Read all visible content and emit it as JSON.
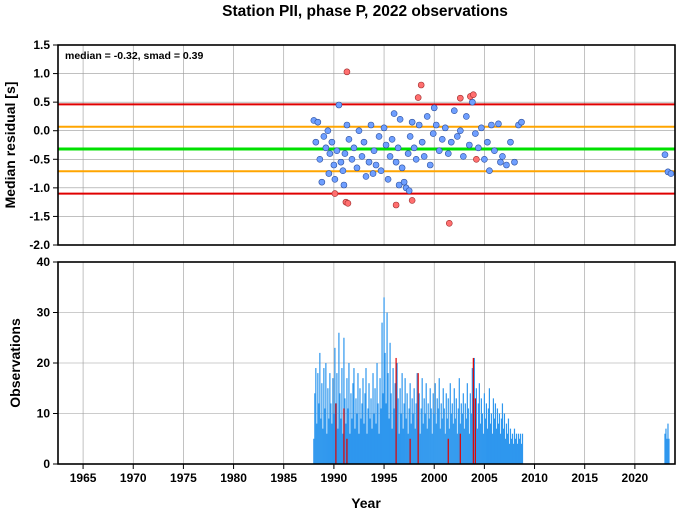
{
  "title": "Station PII, phase P, 2022 observations",
  "colors": {
    "median_line": "#00e000",
    "smad_line": "#ffa500",
    "outer_line": "#e00000",
    "normal_point": "#6f9fff",
    "outlier_point": "#ff6f6f",
    "normal_bar": "#2e97ee",
    "outlier_bar": "#e00000",
    "grid": "#9a9a9a"
  },
  "chart_data": [
    {
      "type": "scatter",
      "annotation": "median = -0.32, smad = 0.39",
      "xlabel": "",
      "ylabel": "Median residual [s]",
      "xlim": [
        1962.5,
        2024
      ],
      "ylim": [
        -2.0,
        1.5
      ],
      "y_ticks": [
        "1.5",
        "1.0",
        "0.5",
        "0.0",
        "-0.5",
        "-1.0",
        "-1.5",
        "-2.0"
      ],
      "grid": true,
      "hlines": [
        {
          "y": 0.46,
          "role": "upper-outer"
        },
        {
          "y": 0.07,
          "role": "upper-smad"
        },
        {
          "y": -0.32,
          "role": "median"
        },
        {
          "y": -0.71,
          "role": "lower-smad"
        },
        {
          "y": -1.1,
          "role": "lower-outer"
        }
      ],
      "points": [
        [
          1988.0,
          0.18
        ],
        [
          1988.2,
          -0.2
        ],
        [
          1988.4,
          0.15
        ],
        [
          1988.6,
          -0.5
        ],
        [
          1988.8,
          -0.9
        ],
        [
          1989.0,
          -0.1
        ],
        [
          1989.2,
          -0.3
        ],
        [
          1989.4,
          0.0
        ],
        [
          1989.6,
          -0.4
        ],
        [
          1989.8,
          -0.2
        ],
        [
          1990.0,
          -0.6
        ],
        [
          1990.1,
          -0.85
        ],
        [
          1990.3,
          -0.35
        ],
        [
          1990.5,
          0.45
        ],
        [
          1990.7,
          -0.55
        ],
        [
          1990.9,
          -0.7
        ],
        [
          1991.1,
          -0.4
        ],
        [
          1991.3,
          0.1
        ],
        [
          1991.5,
          -0.15
        ],
        [
          1991.8,
          -0.5
        ],
        [
          1992.0,
          -0.3
        ],
        [
          1992.3,
          -0.65
        ],
        [
          1992.5,
          0.0
        ],
        [
          1992.8,
          -0.45
        ],
        [
          1993.0,
          -0.2
        ],
        [
          1993.2,
          -0.8
        ],
        [
          1993.5,
          -0.55
        ],
        [
          1993.7,
          0.1
        ],
        [
          1994.0,
          -0.35
        ],
        [
          1994.2,
          -0.6
        ],
        [
          1994.5,
          -0.1
        ],
        [
          1994.7,
          -0.7
        ],
        [
          1995.0,
          0.05
        ],
        [
          1995.2,
          -0.25
        ],
        [
          1995.4,
          -0.85
        ],
        [
          1995.6,
          -0.45
        ],
        [
          1995.8,
          -0.15
        ],
        [
          1996.0,
          0.3
        ],
        [
          1996.2,
          -0.55
        ],
        [
          1996.4,
          -0.3
        ],
        [
          1996.6,
          0.2
        ],
        [
          1996.8,
          -0.65
        ],
        [
          1997.0,
          -0.9
        ],
        [
          1997.2,
          -1.0
        ],
        [
          1997.4,
          -0.4
        ],
        [
          1997.6,
          -0.1
        ],
        [
          1997.8,
          0.15
        ],
        [
          1998.0,
          -0.3
        ],
        [
          1998.2,
          -0.5
        ],
        [
          1998.5,
          0.1
        ],
        [
          1998.8,
          -0.2
        ],
        [
          1999.0,
          -0.45
        ],
        [
          1999.3,
          0.25
        ],
        [
          1999.6,
          -0.6
        ],
        [
          1999.9,
          -0.05
        ],
        [
          2000.2,
          0.1
        ],
        [
          2000.5,
          -0.35
        ],
        [
          2000.8,
          -0.15
        ],
        [
          2001.1,
          0.05
        ],
        [
          2001.4,
          -0.4
        ],
        [
          2001.7,
          -0.2
        ],
        [
          2002.0,
          0.35
        ],
        [
          2002.3,
          -0.1
        ],
        [
          2002.6,
          0.0
        ],
        [
          2002.9,
          -0.45
        ],
        [
          2003.2,
          0.25
        ],
        [
          2003.5,
          -0.25
        ],
        [
          2003.8,
          0.5
        ],
        [
          2004.1,
          -0.05
        ],
        [
          2004.4,
          -0.3
        ],
        [
          2004.7,
          0.05
        ],
        [
          2005.0,
          -0.5
        ],
        [
          2005.3,
          -0.2
        ],
        [
          2005.7,
          0.1
        ],
        [
          2006.0,
          -0.35
        ],
        [
          2006.4,
          0.12
        ],
        [
          2006.8,
          -0.45
        ],
        [
          2007.2,
          -0.6
        ],
        [
          2007.6,
          -0.2
        ],
        [
          2008.0,
          -0.55
        ],
        [
          2008.4,
          0.1
        ],
        [
          2008.7,
          0.15
        ],
        [
          1989.5,
          -0.75
        ],
        [
          1991.0,
          -0.95
        ],
        [
          1993.9,
          -0.75
        ],
        [
          1996.5,
          -0.95
        ],
        [
          1997.5,
          -1.05
        ],
        [
          2000.0,
          0.4
        ],
        [
          2005.5,
          -0.7
        ],
        [
          2006.6,
          -0.55
        ],
        [
          2023.0,
          -0.42
        ],
        [
          2023.3,
          -0.72
        ],
        [
          2023.6,
          -0.75
        ]
      ],
      "outliers": [
        [
          1990.1,
          -1.1
        ],
        [
          1991.2,
          -1.25
        ],
        [
          1991.4,
          -1.27
        ],
        [
          1991.3,
          1.03
        ],
        [
          1996.2,
          -1.3
        ],
        [
          1997.8,
          -1.22
        ],
        [
          1998.4,
          0.58
        ],
        [
          1998.7,
          0.8
        ],
        [
          2001.5,
          -1.62
        ],
        [
          2002.6,
          0.57
        ],
        [
          2003.6,
          0.6
        ],
        [
          2003.9,
          0.63
        ],
        [
          2004.2,
          -0.5
        ]
      ]
    },
    {
      "type": "bar",
      "xlabel": "Year",
      "ylabel": "Observations",
      "xlim": [
        1962.5,
        2024
      ],
      "ylim": [
        0,
        40
      ],
      "y_ticks": [
        "40",
        "30",
        "20",
        "10",
        "0"
      ],
      "x_ticks": [
        "1965",
        "1970",
        "1975",
        "1980",
        "1985",
        "1990",
        "1995",
        "2000",
        "2005",
        "2010",
        "2015",
        "2020"
      ],
      "grid": true,
      "bars": [
        [
          1988.0,
          5
        ],
        [
          1988.1,
          14
        ],
        [
          1988.2,
          19
        ],
        [
          1988.3,
          8
        ],
        [
          1988.4,
          18
        ],
        [
          1988.5,
          12
        ],
        [
          1988.6,
          22
        ],
        [
          1988.7,
          9
        ],
        [
          1988.8,
          16
        ],
        [
          1988.9,
          7
        ],
        [
          1989.0,
          19
        ],
        [
          1989.1,
          11
        ],
        [
          1989.2,
          20
        ],
        [
          1989.3,
          6
        ],
        [
          1989.4,
          15
        ],
        [
          1989.5,
          9
        ],
        [
          1989.6,
          18
        ],
        [
          1989.7,
          12
        ],
        [
          1989.8,
          8
        ],
        [
          1989.9,
          17
        ],
        [
          1990.0,
          10
        ],
        [
          1990.1,
          23
        ],
        [
          1990.2,
          12
        ],
        [
          1990.3,
          18
        ],
        [
          1990.4,
          7
        ],
        [
          1990.5,
          26
        ],
        [
          1990.6,
          14
        ],
        [
          1990.7,
          9
        ],
        [
          1990.8,
          19
        ],
        [
          1990.9,
          6
        ],
        [
          1991.0,
          25
        ],
        [
          1991.1,
          13
        ],
        [
          1991.2,
          8
        ],
        [
          1991.3,
          17
        ],
        [
          1991.4,
          11
        ],
        [
          1991.5,
          20
        ],
        [
          1991.6,
          6
        ],
        [
          1991.7,
          14
        ],
        [
          1991.8,
          9
        ],
        [
          1991.9,
          16
        ],
        [
          1992.0,
          19
        ],
        [
          1992.1,
          7
        ],
        [
          1992.2,
          13
        ],
        [
          1992.3,
          10
        ],
        [
          1992.4,
          18
        ],
        [
          1992.5,
          6
        ],
        [
          1992.6,
          15
        ],
        [
          1992.7,
          9
        ],
        [
          1992.8,
          12
        ],
        [
          1992.9,
          17
        ],
        [
          1993.0,
          8
        ],
        [
          1993.1,
          14
        ],
        [
          1993.2,
          19
        ],
        [
          1993.3,
          6
        ],
        [
          1993.4,
          11
        ],
        [
          1993.5,
          16
        ],
        [
          1993.6,
          9
        ],
        [
          1993.7,
          13
        ],
        [
          1993.8,
          7
        ],
        [
          1993.9,
          18
        ],
        [
          1994.0,
          10
        ],
        [
          1994.1,
          15
        ],
        [
          1994.2,
          8
        ],
        [
          1994.3,
          20
        ],
        [
          1994.4,
          12
        ],
        [
          1994.5,
          6
        ],
        [
          1994.6,
          17
        ],
        [
          1994.7,
          11
        ],
        [
          1994.8,
          28
        ],
        [
          1994.9,
          14
        ],
        [
          1995.0,
          33
        ],
        [
          1995.1,
          22
        ],
        [
          1995.2,
          12
        ],
        [
          1995.3,
          30
        ],
        [
          1995.4,
          18
        ],
        [
          1995.5,
          9
        ],
        [
          1995.6,
          24
        ],
        [
          1995.7,
          14
        ],
        [
          1995.8,
          7
        ],
        [
          1995.9,
          19
        ],
        [
          1996.0,
          11
        ],
        [
          1996.1,
          16
        ],
        [
          1996.2,
          8
        ],
        [
          1996.3,
          20
        ],
        [
          1996.4,
          13
        ],
        [
          1996.5,
          6
        ],
        [
          1996.6,
          15
        ],
        [
          1996.7,
          10
        ],
        [
          1996.8,
          18
        ],
        [
          1996.9,
          7
        ],
        [
          1997.0,
          12
        ],
        [
          1997.1,
          17
        ],
        [
          1997.2,
          9
        ],
        [
          1997.3,
          14
        ],
        [
          1997.4,
          6
        ],
        [
          1997.5,
          11
        ],
        [
          1997.6,
          16
        ],
        [
          1997.7,
          8
        ],
        [
          1997.8,
          13
        ],
        [
          1997.9,
          10
        ],
        [
          1998.0,
          15
        ],
        [
          1998.1,
          7
        ],
        [
          1998.2,
          12
        ],
        [
          1998.3,
          18
        ],
        [
          1998.4,
          9
        ],
        [
          1998.5,
          14
        ],
        [
          1998.6,
          6
        ],
        [
          1998.7,
          11
        ],
        [
          1998.8,
          17
        ],
        [
          1998.9,
          8
        ],
        [
          1999.0,
          13
        ],
        [
          1999.1,
          10
        ],
        [
          1999.2,
          16
        ],
        [
          1999.3,
          7
        ],
        [
          1999.4,
          12
        ],
        [
          1999.5,
          9
        ],
        [
          1999.6,
          15
        ],
        [
          1999.7,
          11
        ],
        [
          1999.8,
          6
        ],
        [
          1999.9,
          14
        ],
        [
          2000.0,
          10
        ],
        [
          2000.1,
          16
        ],
        [
          2000.2,
          8
        ],
        [
          2000.3,
          13
        ],
        [
          2000.4,
          11
        ],
        [
          2000.5,
          17
        ],
        [
          2000.6,
          7
        ],
        [
          2000.7,
          12
        ],
        [
          2000.8,
          9
        ],
        [
          2000.9,
          15
        ],
        [
          2001.0,
          11
        ],
        [
          2001.1,
          6
        ],
        [
          2001.2,
          14
        ],
        [
          2001.3,
          9
        ],
        [
          2001.4,
          13
        ],
        [
          2001.5,
          7
        ],
        [
          2001.6,
          16
        ],
        [
          2001.7,
          10
        ],
        [
          2001.8,
          12
        ],
        [
          2001.9,
          8
        ],
        [
          2002.0,
          15
        ],
        [
          2002.1,
          9
        ],
        [
          2002.2,
          13
        ],
        [
          2002.3,
          6
        ],
        [
          2002.4,
          11
        ],
        [
          2002.5,
          17
        ],
        [
          2002.6,
          8
        ],
        [
          2002.7,
          12
        ],
        [
          2002.8,
          10
        ],
        [
          2002.9,
          14
        ],
        [
          2003.0,
          7
        ],
        [
          2003.1,
          12
        ],
        [
          2003.2,
          9
        ],
        [
          2003.3,
          16
        ],
        [
          2003.4,
          11
        ],
        [
          2003.5,
          6
        ],
        [
          2003.6,
          14
        ],
        [
          2003.7,
          10
        ],
        [
          2003.8,
          19
        ],
        [
          2003.9,
          13
        ],
        [
          2004.0,
          21
        ],
        [
          2004.1,
          9
        ],
        [
          2004.2,
          15
        ],
        [
          2004.3,
          7
        ],
        [
          2004.4,
          12
        ],
        [
          2004.5,
          16
        ],
        [
          2004.6,
          8
        ],
        [
          2004.7,
          13
        ],
        [
          2004.8,
          10
        ],
        [
          2004.9,
          6
        ],
        [
          2005.0,
          14
        ],
        [
          2005.1,
          9
        ],
        [
          2005.2,
          12
        ],
        [
          2005.3,
          7
        ],
        [
          2005.4,
          11
        ],
        [
          2005.5,
          15
        ],
        [
          2005.6,
          8
        ],
        [
          2005.7,
          10
        ],
        [
          2005.8,
          6
        ],
        [
          2005.9,
          13
        ],
        [
          2006.0,
          9
        ],
        [
          2006.1,
          12
        ],
        [
          2006.2,
          7
        ],
        [
          2006.3,
          11
        ],
        [
          2006.4,
          8
        ],
        [
          2006.5,
          10
        ],
        [
          2006.6,
          6
        ],
        [
          2006.7,
          9
        ],
        [
          2006.8,
          12
        ],
        [
          2006.9,
          7
        ],
        [
          2007.0,
          10
        ],
        [
          2007.1,
          5
        ],
        [
          2007.2,
          8
        ],
        [
          2007.3,
          6
        ],
        [
          2007.4,
          9
        ],
        [
          2007.5,
          4
        ],
        [
          2007.6,
          7
        ],
        [
          2007.7,
          5
        ],
        [
          2007.8,
          6
        ],
        [
          2007.9,
          4
        ],
        [
          2008.0,
          7
        ],
        [
          2008.1,
          5
        ],
        [
          2008.2,
          6
        ],
        [
          2008.3,
          4
        ],
        [
          2008.4,
          6
        ],
        [
          2008.5,
          5
        ],
        [
          2008.6,
          6
        ],
        [
          2008.7,
          4
        ],
        [
          2008.8,
          6
        ],
        [
          2023.0,
          6
        ],
        [
          2023.1,
          7
        ],
        [
          2023.2,
          5
        ],
        [
          2023.3,
          8
        ],
        [
          2023.4,
          5
        ]
      ],
      "outlier_bars": [
        [
          1990.2,
          12
        ],
        [
          1991.0,
          11
        ],
        [
          1991.3,
          5
        ],
        [
          1996.2,
          21
        ],
        [
          1997.6,
          5
        ],
        [
          1998.4,
          18
        ],
        [
          2001.4,
          5
        ],
        [
          2002.6,
          6
        ],
        [
          2003.9,
          21
        ],
        [
          2004.1,
          13
        ]
      ]
    }
  ]
}
